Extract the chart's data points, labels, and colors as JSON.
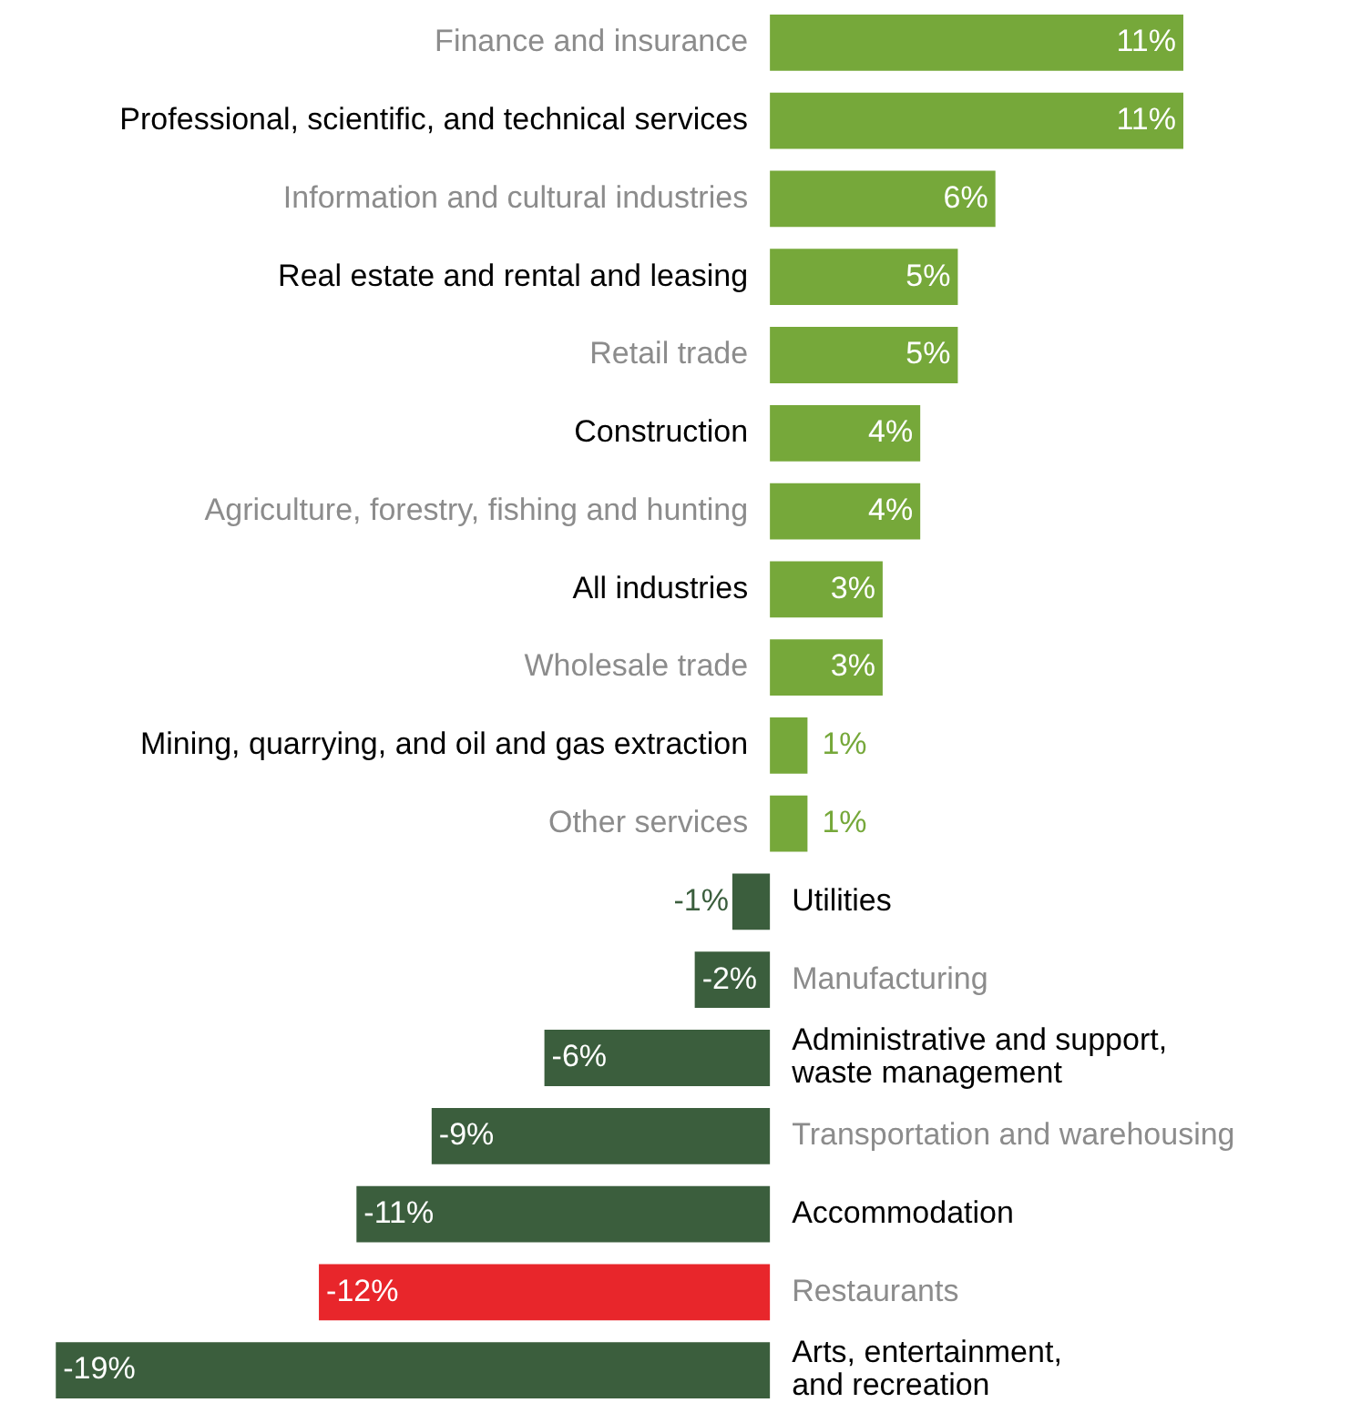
{
  "chart_data": {
    "type": "bar",
    "orientation": "horizontal",
    "categories": [
      "Finance and insurance",
      "Professional, scientific, and technical services",
      "Information and cultural industries",
      "Real estate and rental and leasing",
      "Retail trade",
      "Construction",
      "Agriculture, forestry, fishing and hunting",
      "All industries",
      "Wholesale trade",
      "Mining, quarrying, and oil and gas extraction",
      "Other services",
      "Utilities",
      "Manufacturing",
      "Administrative and support,\nwaste management",
      "Transportation and warehousing",
      "Accommodation",
      "Restaurants",
      "Arts, entertainment,\nand recreation"
    ],
    "values": [
      11,
      11,
      6,
      5,
      5,
      4,
      4,
      3,
      3,
      1,
      1,
      -1,
      -2,
      -6,
      -9,
      -11,
      -12,
      -19
    ],
    "colors": [
      "#76a83a",
      "#76a83a",
      "#76a83a",
      "#76a83a",
      "#76a83a",
      "#76a83a",
      "#76a83a",
      "#76a83a",
      "#76a83a",
      "#76a83a",
      "#76a83a",
      "#3b5e3d",
      "#3b5e3d",
      "#3b5e3d",
      "#3b5e3d",
      "#3b5e3d",
      "#e8262b",
      "#3b5e3d"
    ],
    "value_labels": [
      "11%",
      "11%",
      "6%",
      "5%",
      "5%",
      "4%",
      "4%",
      "3%",
      "3%",
      "1%",
      "1%",
      "-1%",
      "-2%",
      "-6%",
      "-9%",
      "-11%",
      "-12%",
      "-19%"
    ],
    "tick_labels": "y",
    "legend": false
  }
}
